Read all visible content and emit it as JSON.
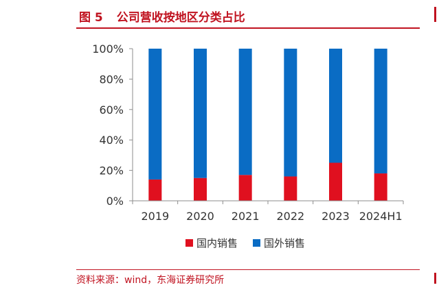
{
  "figure": {
    "label": "图 5",
    "title": "公司营收按地区分类占比",
    "source": "资料来源：wind，东海证券研究所"
  },
  "colors": {
    "accent": "#c0121f",
    "domestic": "#e0101f",
    "overseas": "#0a6cc4"
  },
  "chart_data": {
    "type": "bar",
    "stacked": true,
    "categories": [
      "2019",
      "2020",
      "2021",
      "2022",
      "2023",
      "2024H1"
    ],
    "series": [
      {
        "name": "国内销售",
        "values": [
          14,
          15,
          17,
          16,
          25,
          18
        ]
      },
      {
        "name": "国外销售",
        "values": [
          86,
          85,
          83,
          84,
          75,
          82
        ]
      }
    ],
    "y_ticks": [
      "0%",
      "20%",
      "40%",
      "60%",
      "80%",
      "100%"
    ],
    "ylim": [
      0,
      100
    ],
    "grid": false,
    "legend_position": "bottom"
  }
}
